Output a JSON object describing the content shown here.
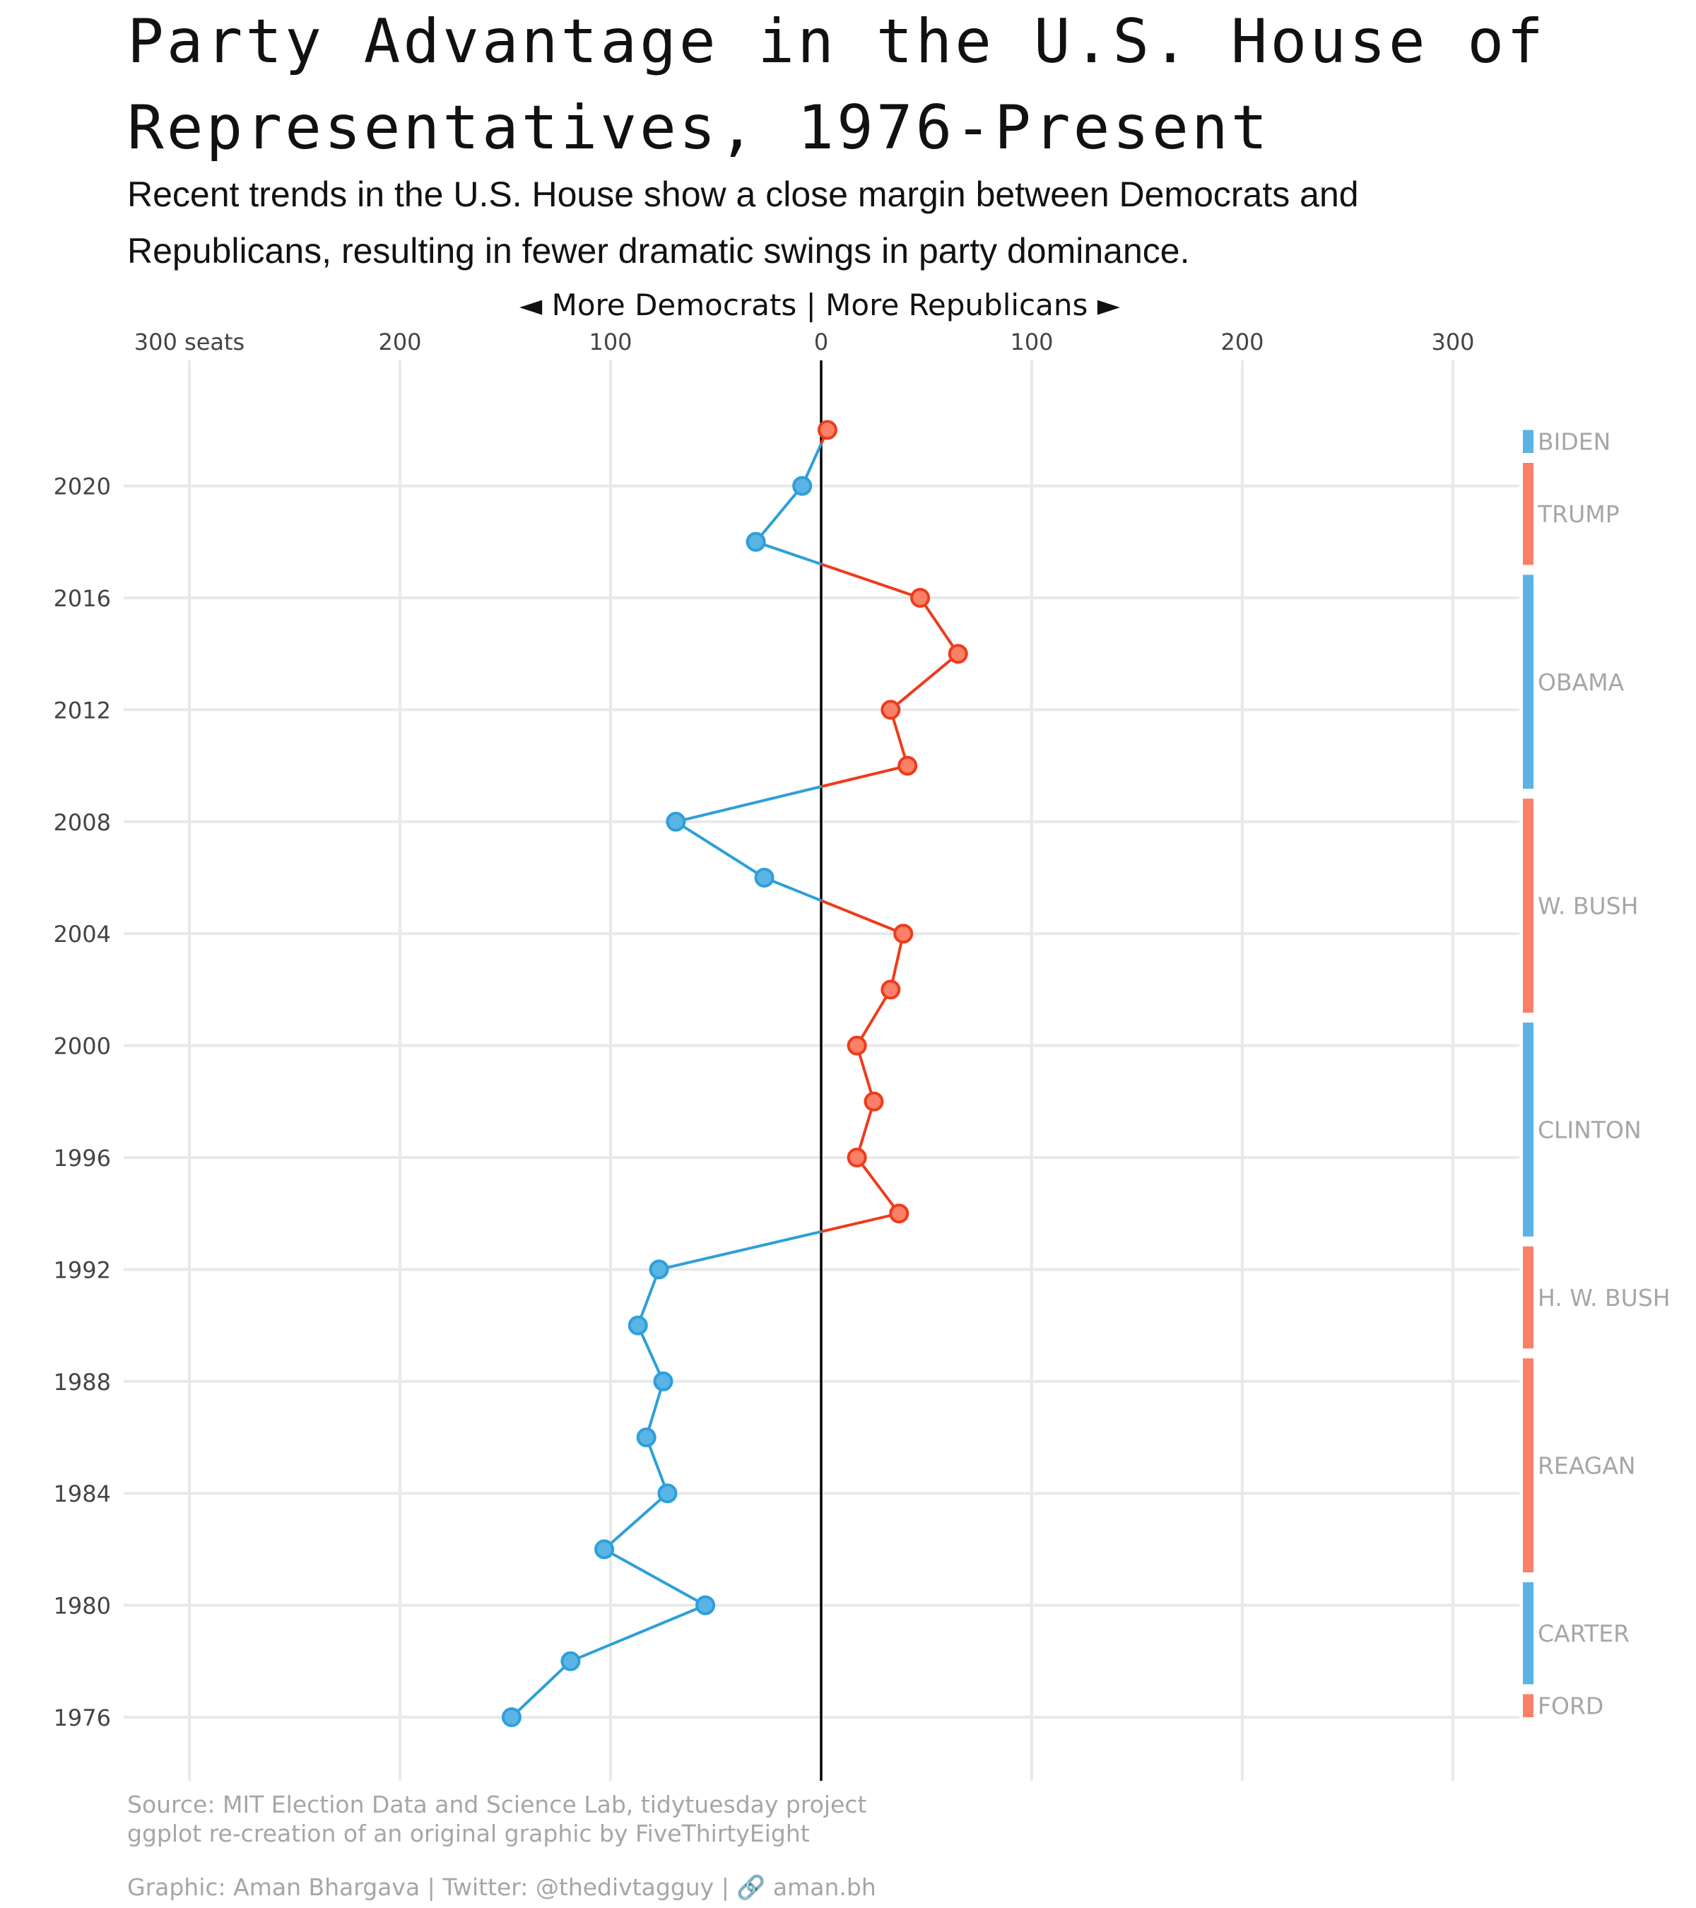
{
  "title_line1": "Party Advantage in the U.S. House of",
  "title_line2": "Representatives, 1976-Present",
  "subtitle_line1": "Recent trends in the U.S. House show a close margin between Democrats and",
  "subtitle_line2": "Republicans, resulting in fewer dramatic swings in party dominance.",
  "direction_label": "◄ More Democrats   |  More Republicans ►",
  "caption_line1": "Source: MIT Election Data and Science Lab, tidytuesday project",
  "caption_line2": "ggplot re-creation of an original graphic by FiveThirtyEight",
  "caption_line3": "Graphic: Aman Bhargava | Twitter: @thedivtagguy | 🔗 aman.bh",
  "chart_data": {
    "type": "line",
    "xlim": [
      -300,
      300
    ],
    "ylim": [
      1976,
      2022
    ],
    "x_ticks": [
      {
        "value": -300,
        "label": "300 seats"
      },
      {
        "value": -200,
        "label": "200"
      },
      {
        "value": -100,
        "label": "100"
      },
      {
        "value": 0,
        "label": "0"
      },
      {
        "value": 100,
        "label": "100"
      },
      {
        "value": 200,
        "label": "200"
      },
      {
        "value": 300,
        "label": "300"
      }
    ],
    "y_ticks": [
      1976,
      1980,
      1984,
      1988,
      1992,
      1996,
      2000,
      2004,
      2008,
      2012,
      2016,
      2020
    ],
    "grid": true,
    "colors": {
      "democrat": "#2e9fd9",
      "republican": "#ee3b1c",
      "democrat_fill": "#5ab4e5",
      "republican_fill": "#fa8068",
      "zero_line": "#000000"
    },
    "points": [
      {
        "year": 1976,
        "advantage": -147
      },
      {
        "year": 1978,
        "advantage": -119
      },
      {
        "year": 1980,
        "advantage": -55
      },
      {
        "year": 1982,
        "advantage": -103
      },
      {
        "year": 1984,
        "advantage": -73
      },
      {
        "year": 1986,
        "advantage": -83
      },
      {
        "year": 1988,
        "advantage": -75
      },
      {
        "year": 1990,
        "advantage": -87
      },
      {
        "year": 1992,
        "advantage": -77
      },
      {
        "year": 1994,
        "advantage": 37
      },
      {
        "year": 1996,
        "advantage": 17
      },
      {
        "year": 1998,
        "advantage": 25
      },
      {
        "year": 2000,
        "advantage": 17
      },
      {
        "year": 2002,
        "advantage": 33
      },
      {
        "year": 2004,
        "advantage": 39
      },
      {
        "year": 2006,
        "advantage": -27
      },
      {
        "year": 2008,
        "advantage": -69
      },
      {
        "year": 2010,
        "advantage": 41
      },
      {
        "year": 2012,
        "advantage": 33
      },
      {
        "year": 2014,
        "advantage": 65
      },
      {
        "year": 2016,
        "advantage": 47
      },
      {
        "year": 2018,
        "advantage": -31
      },
      {
        "year": 2020,
        "advantage": -9
      },
      {
        "year": 2022,
        "advantage": 3
      }
    ],
    "presidents": [
      {
        "name": "FORD",
        "party": "R",
        "start": 1976,
        "end": 1977
      },
      {
        "name": "CARTER",
        "party": "D",
        "start": 1977,
        "end": 1981
      },
      {
        "name": "REAGAN",
        "party": "R",
        "start": 1981,
        "end": 1989
      },
      {
        "name": "H. W. BUSH",
        "party": "R",
        "start": 1989,
        "end": 1993
      },
      {
        "name": "CLINTON",
        "party": "D",
        "start": 1993,
        "end": 2001
      },
      {
        "name": "W. BUSH",
        "party": "R",
        "start": 2001,
        "end": 2009
      },
      {
        "name": "OBAMA",
        "party": "D",
        "start": 2009,
        "end": 2017
      },
      {
        "name": "TRUMP",
        "party": "R",
        "start": 2017,
        "end": 2021
      },
      {
        "name": "BIDEN",
        "party": "D",
        "start": 2021,
        "end": 2023
      }
    ]
  }
}
